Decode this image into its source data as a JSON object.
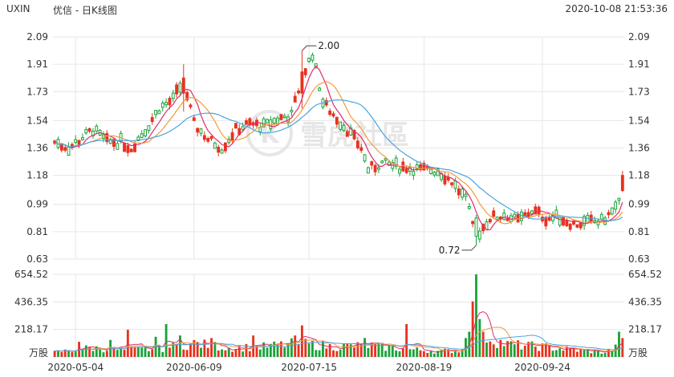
{
  "header": {
    "symbol": "UXIN",
    "title": "优信 - 日K线图",
    "timestamp": "2020-10-08 21:53:36"
  },
  "watermark": "雪虎社區",
  "colors": {
    "up": "#e8321e",
    "down": "#1aa33a",
    "ma5": "#dd2d6b",
    "ma10": "#f39a3c",
    "ma20": "#4aa4e0",
    "grid": "#e6e6e6"
  },
  "chart_data": [
    {
      "type": "candlestick",
      "title": "日K线图",
      "y_ticks": [
        "2.09",
        "1.91",
        "1.73",
        "1.54",
        "1.36",
        "1.18",
        "0.99",
        "0.81",
        "0.63"
      ],
      "ylim": [
        0.63,
        2.09
      ],
      "x_ticks": [
        "2020-05-04",
        "2020-06-09",
        "2020-07-15",
        "2020-08-19",
        "2020-09-24"
      ],
      "annotations": [
        {
          "label": "2.00",
          "value": 2.0
        },
        {
          "label": "0.72",
          "value": 0.72
        }
      ],
      "anchors": [
        [
          0,
          1.4
        ],
        [
          4,
          1.36
        ],
        [
          8,
          1.43
        ],
        [
          11,
          1.48
        ],
        [
          15,
          1.4
        ],
        [
          19,
          1.4
        ],
        [
          22,
          1.36
        ],
        [
          26,
          1.48
        ],
        [
          30,
          1.62
        ],
        [
          34,
          1.68
        ],
        [
          37,
          1.8
        ],
        [
          40,
          1.52
        ],
        [
          44,
          1.42
        ],
        [
          48,
          1.36
        ],
        [
          52,
          1.48
        ],
        [
          56,
          1.52
        ],
        [
          60,
          1.5
        ],
        [
          64,
          1.55
        ],
        [
          68,
          1.58
        ],
        [
          71,
          1.82
        ],
        [
          74,
          1.98
        ],
        [
          77,
          1.66
        ],
        [
          80,
          1.58
        ],
        [
          84,
          1.48
        ],
        [
          88,
          1.36
        ],
        [
          90,
          1.22
        ],
        [
          94,
          1.26
        ],
        [
          98,
          1.24
        ],
        [
          104,
          1.22
        ],
        [
          110,
          1.21
        ],
        [
          114,
          1.14
        ],
        [
          118,
          1.02
        ],
        [
          121,
          0.78
        ],
        [
          125,
          0.9
        ],
        [
          129,
          0.92
        ],
        [
          133,
          0.88
        ],
        [
          137,
          0.95
        ],
        [
          141,
          0.9
        ],
        [
          145,
          0.9
        ],
        [
          149,
          0.86
        ],
        [
          153,
          0.87
        ],
        [
          157,
          0.88
        ],
        [
          160,
          0.94
        ],
        [
          162,
          1.0
        ],
        [
          163,
          1.15
        ]
      ],
      "overrides": [
        {
          "i": 71,
          "o": 1.72,
          "h": 2.0,
          "l": 1.62,
          "c": 1.86
        },
        {
          "i": 121,
          "o": 0.9,
          "h": 0.92,
          "l": 0.72,
          "c": 0.78
        },
        {
          "i": 163,
          "o": 1.08,
          "h": 1.21,
          "l": 1.07,
          "c": 1.18
        },
        {
          "i": 37,
          "o": 1.72,
          "h": 1.91,
          "l": 1.6,
          "c": 1.82
        }
      ]
    },
    {
      "type": "bar",
      "title": "成交量",
      "unit": "万股",
      "y_ticks": [
        "654.52",
        "436.35",
        "218.17",
        "万股"
      ],
      "ylim": [
        0,
        654.52
      ],
      "anchors": [
        [
          0,
          40
        ],
        [
          10,
          80
        ],
        [
          20,
          60
        ],
        [
          30,
          70
        ],
        [
          40,
          120
        ],
        [
          50,
          80
        ],
        [
          60,
          90
        ],
        [
          70,
          120
        ],
        [
          80,
          90
        ],
        [
          90,
          100
        ],
        [
          100,
          70
        ],
        [
          110,
          50
        ],
        [
          117,
          60
        ],
        [
          119,
          200
        ],
        [
          120,
          440
        ],
        [
          121,
          654
        ],
        [
          122,
          300
        ],
        [
          123,
          200
        ],
        [
          126,
          150
        ],
        [
          130,
          110
        ],
        [
          140,
          90
        ],
        [
          150,
          60
        ],
        [
          158,
          40
        ],
        [
          161,
          80
        ],
        [
          162,
          200
        ],
        [
          163,
          120
        ]
      ],
      "spikes": [
        {
          "i": 7,
          "v": 120
        },
        {
          "i": 16,
          "v": 135
        },
        {
          "i": 21,
          "v": 215
        },
        {
          "i": 29,
          "v": 160
        },
        {
          "i": 32,
          "v": 260
        },
        {
          "i": 36,
          "v": 170
        },
        {
          "i": 45,
          "v": 150
        },
        {
          "i": 57,
          "v": 170
        },
        {
          "i": 69,
          "v": 170
        },
        {
          "i": 71,
          "v": 250
        },
        {
          "i": 89,
          "v": 150
        },
        {
          "i": 101,
          "v": 260
        },
        {
          "i": 118,
          "v": 150
        }
      ]
    }
  ]
}
